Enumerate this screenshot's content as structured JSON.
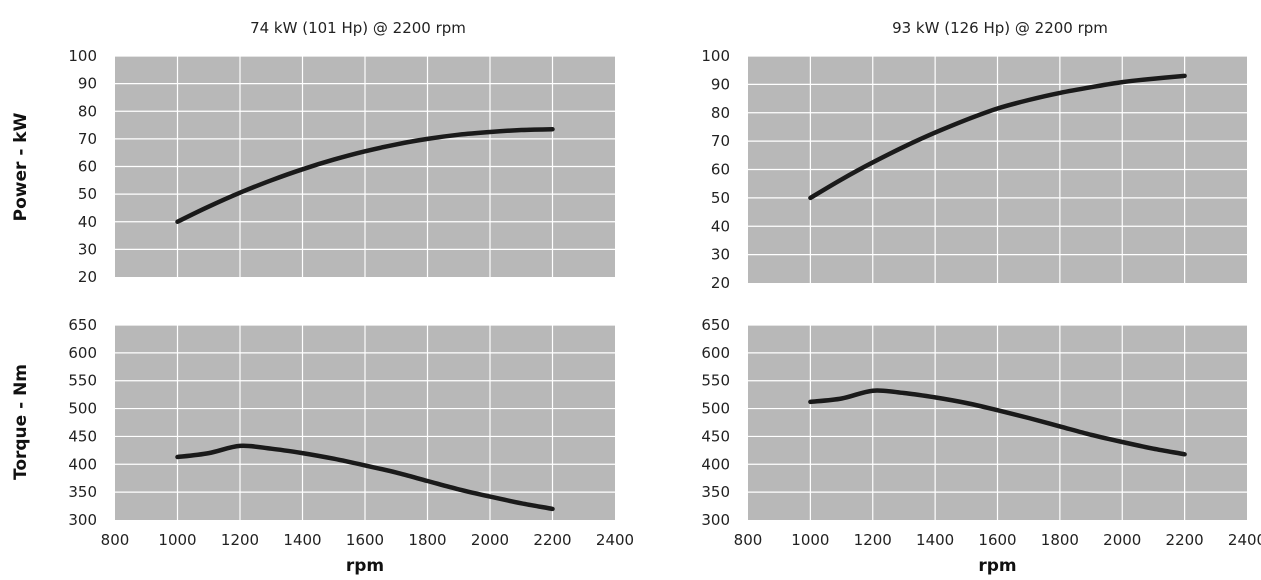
{
  "chart_data": [
    {
      "type": "line",
      "title": "74 kW (101 Hp) @ 2200 rpm",
      "xlabel": "",
      "ylabel": "Power - kW",
      "xlim": [
        800,
        2400
      ],
      "ylim": [
        20,
        100
      ],
      "x_ticks": [
        "800",
        "1000",
        "1200",
        "1400",
        "1600",
        "1800",
        "2000",
        "2200",
        "2400"
      ],
      "y_ticks": [
        "20",
        "30",
        "40",
        "50",
        "60",
        "70",
        "80",
        "90",
        "100"
      ],
      "grid": true,
      "series": [
        {
          "x": [
            1000,
            1100,
            1200,
            1300,
            1400,
            1500,
            1600,
            1700,
            1800,
            1900,
            2000,
            2100,
            2200
          ],
          "y": [
            40,
            45.5,
            50.5,
            55,
            59,
            62.5,
            65.5,
            68,
            70,
            71.5,
            72.5,
            73.2,
            73.5
          ]
        }
      ]
    },
    {
      "type": "line",
      "title": "",
      "xlabel": "rpm",
      "ylabel": "Torque - Nm",
      "xlim": [
        800,
        2400
      ],
      "ylim": [
        300,
        650
      ],
      "x_ticks": [
        "800",
        "1000",
        "1200",
        "1400",
        "1600",
        "1800",
        "2000",
        "2200",
        "2400"
      ],
      "y_ticks": [
        "300",
        "350",
        "400",
        "450",
        "500",
        "550",
        "600",
        "650"
      ],
      "grid": true,
      "series": [
        {
          "x": [
            1000,
            1100,
            1200,
            1300,
            1400,
            1500,
            1600,
            1700,
            1800,
            1900,
            2000,
            2100,
            2200
          ],
          "y": [
            413,
            420,
            433,
            428,
            420,
            410,
            398,
            385,
            370,
            355,
            342,
            330,
            320
          ]
        }
      ]
    },
    {
      "type": "line",
      "title": "93 kW (126 Hp) @ 2200 rpm",
      "xlabel": "",
      "ylabel": "",
      "xlim": [
        800,
        2400
      ],
      "ylim": [
        20,
        100
      ],
      "x_ticks": [
        "800",
        "1000",
        "1200",
        "1400",
        "1600",
        "1800",
        "2000",
        "2200",
        "2400"
      ],
      "y_ticks": [
        "20",
        "30",
        "40",
        "50",
        "60",
        "70",
        "80",
        "90",
        "100"
      ],
      "grid": true,
      "series": [
        {
          "x": [
            1000,
            1100,
            1200,
            1300,
            1400,
            1500,
            1600,
            1700,
            1800,
            1900,
            2000,
            2100,
            2200
          ],
          "y": [
            50,
            56.5,
            62.5,
            68,
            73,
            77.5,
            81.5,
            84.5,
            87,
            89,
            90.8,
            92,
            93
          ]
        }
      ]
    },
    {
      "type": "line",
      "title": "",
      "xlabel": "rpm",
      "ylabel": "",
      "xlim": [
        800,
        2400
      ],
      "ylim": [
        300,
        650
      ],
      "x_ticks": [
        "800",
        "1000",
        "1200",
        "1400",
        "1600",
        "1800",
        "2000",
        "2200",
        "2400"
      ],
      "y_ticks": [
        "300",
        "350",
        "400",
        "450",
        "500",
        "550",
        "600",
        "650"
      ],
      "grid": true,
      "series": [
        {
          "x": [
            1000,
            1100,
            1200,
            1300,
            1400,
            1500,
            1600,
            1700,
            1800,
            1900,
            2000,
            2100,
            2200
          ],
          "y": [
            512,
            518,
            532,
            528,
            520,
            510,
            497,
            483,
            468,
            453,
            440,
            428,
            418
          ]
        }
      ]
    }
  ],
  "colors": {
    "plot_background": "#b8b8b8",
    "grid": "#ffffff",
    "line": "#1a1a1a",
    "text": "#222222"
  }
}
